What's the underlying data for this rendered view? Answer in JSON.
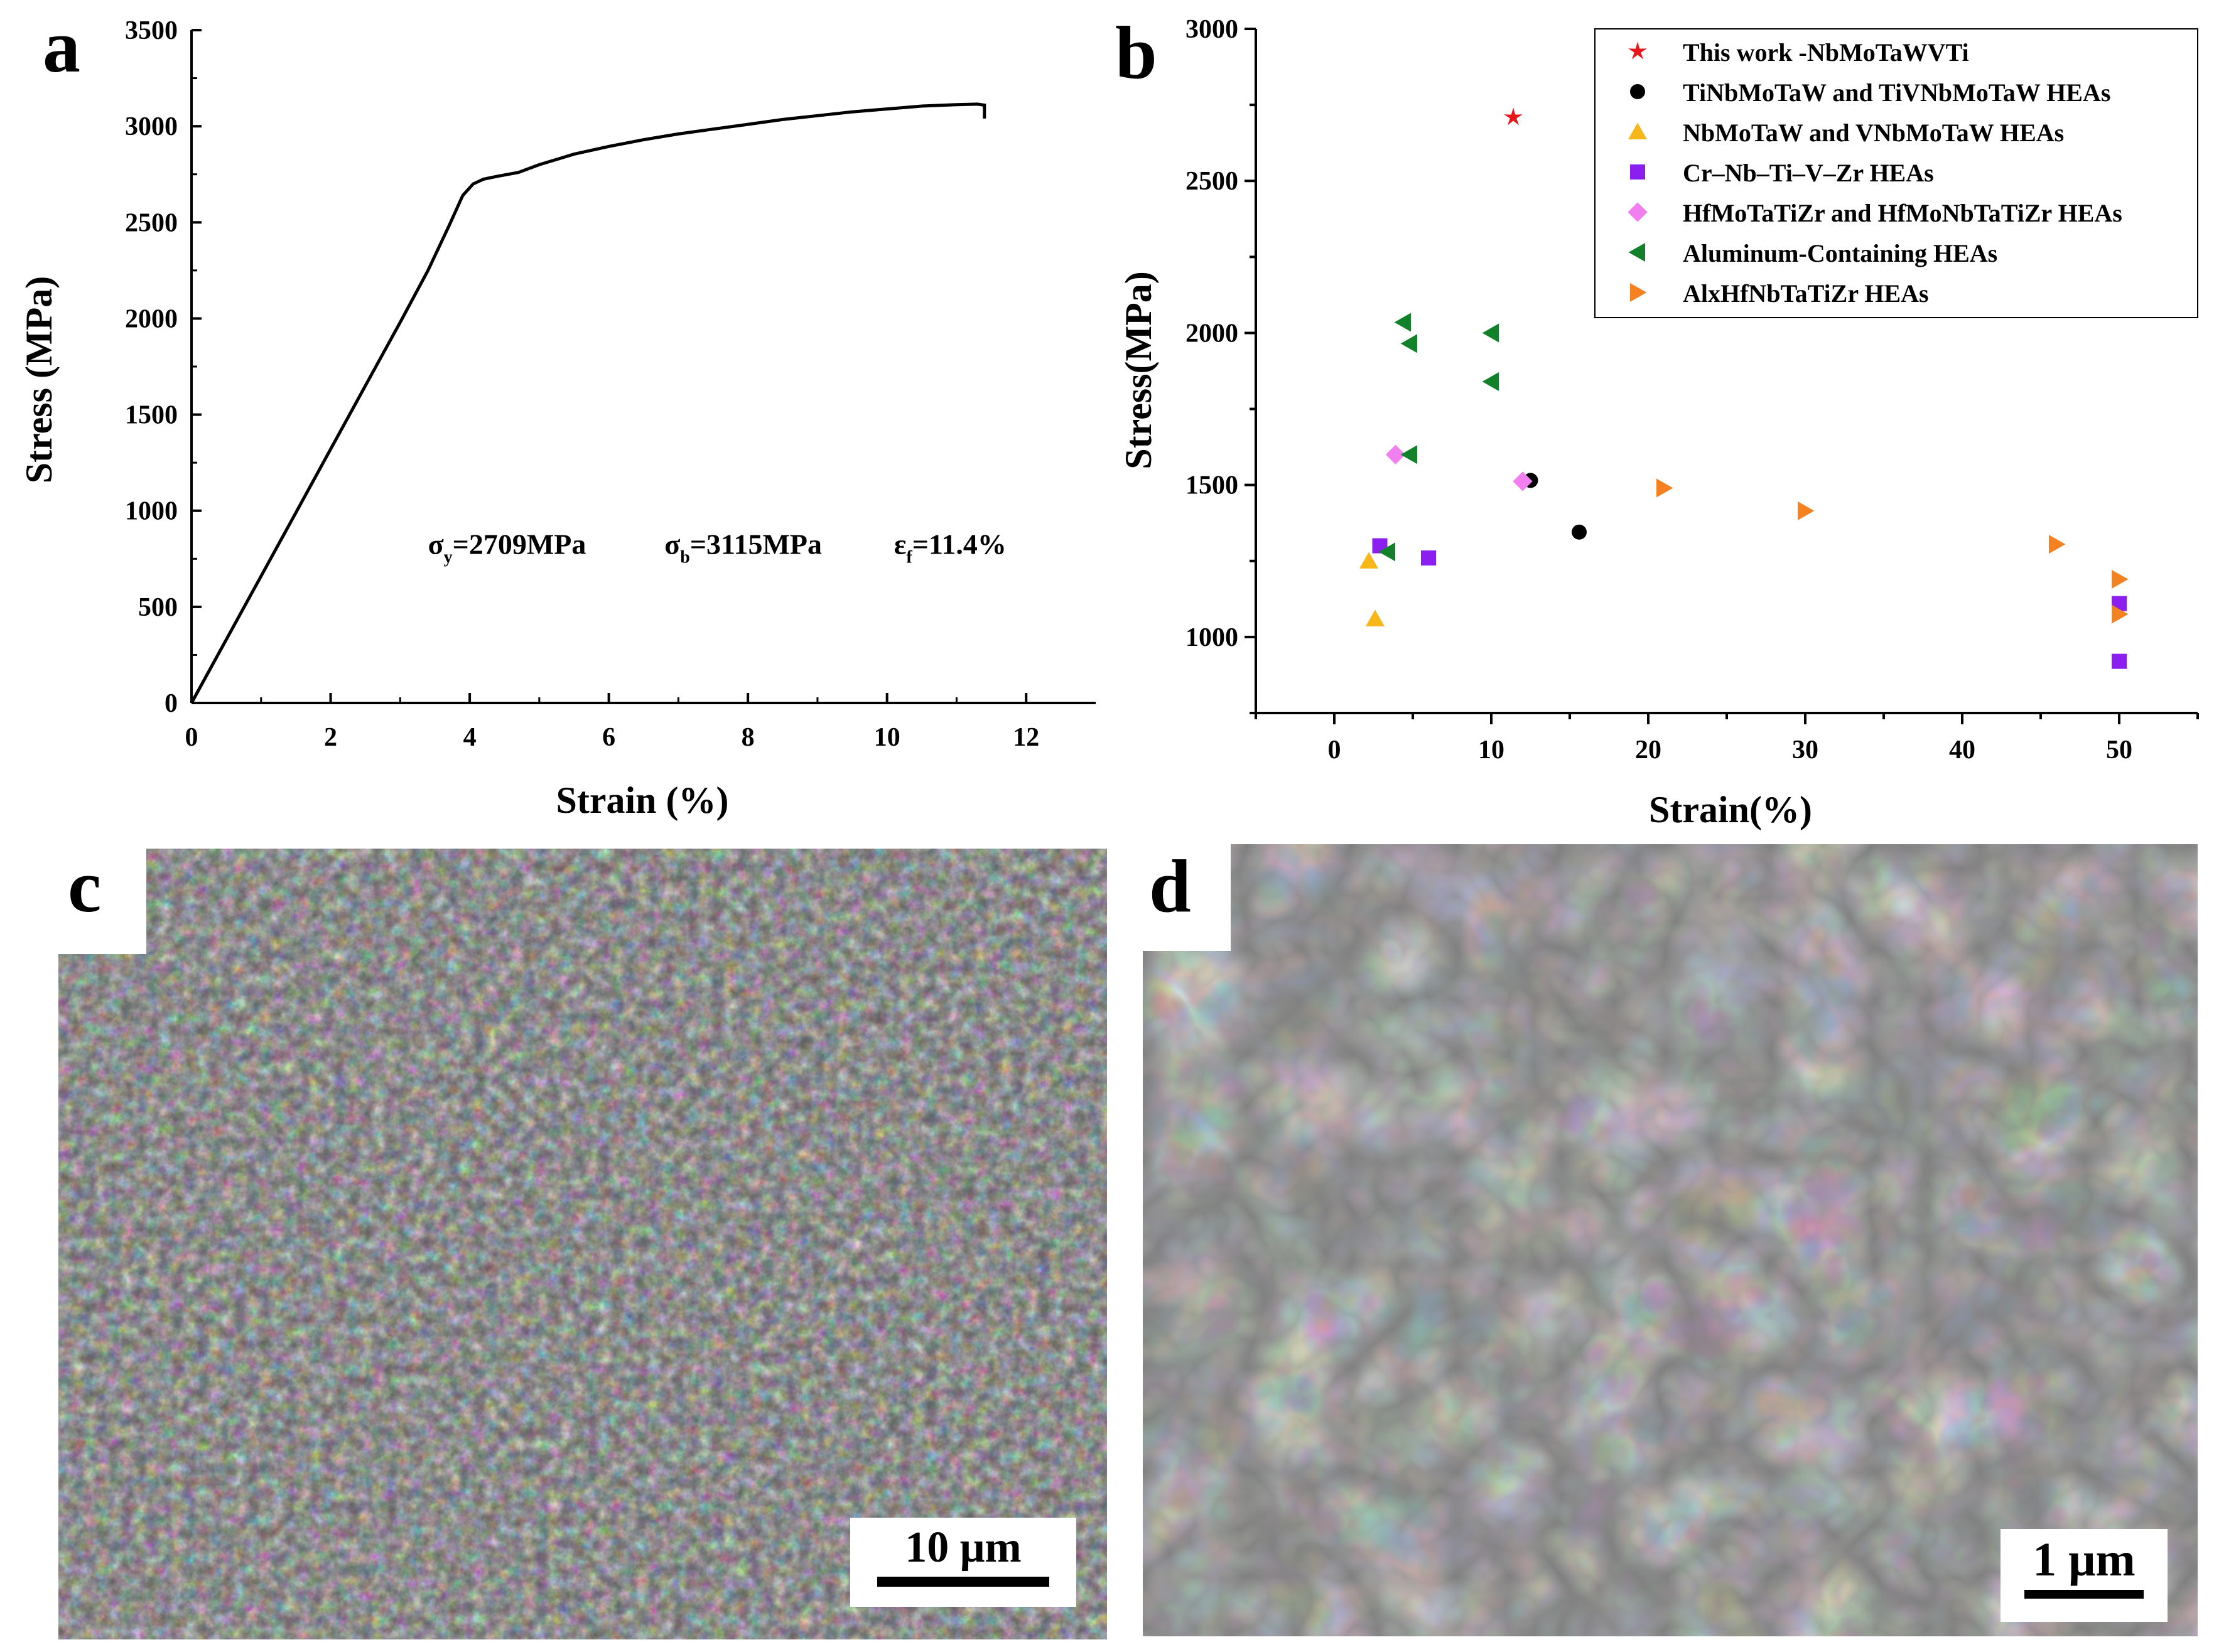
{
  "panels": {
    "a": "a",
    "b": "b",
    "c": "c",
    "d": "d"
  },
  "chart_data": [
    {
      "panel": "a",
      "type": "line",
      "title": "",
      "xlabel": "Strain (%)",
      "ylabel": "Stress (MPa)",
      "xlim": [
        0,
        13
      ],
      "ylim": [
        0,
        3500
      ],
      "xticks": [
        0,
        2,
        4,
        6,
        8,
        10,
        12
      ],
      "yticks": [
        0,
        500,
        1000,
        1500,
        2000,
        2500,
        3000,
        3500
      ],
      "series": [
        {
          "x": [
            0,
            0.5,
            1.0,
            1.5,
            2.0,
            2.5,
            3.0,
            3.4,
            3.7,
            3.9,
            4.05,
            4.2,
            4.4,
            4.7,
            5.0,
            5.5,
            6.0,
            6.5,
            7.0,
            7.5,
            8.0,
            8.5,
            9.0,
            9.5,
            10.0,
            10.5,
            11.0,
            11.3,
            11.4,
            11.4
          ],
          "y": [
            0,
            330,
            660,
            990,
            1320,
            1650,
            1980,
            2250,
            2480,
            2640,
            2700,
            2725,
            2740,
            2760,
            2800,
            2855,
            2895,
            2930,
            2960,
            2985,
            3010,
            3035,
            3055,
            3075,
            3090,
            3105,
            3112,
            3115,
            3110,
            3040
          ]
        }
      ],
      "annotations": [
        {
          "symbol": "σ",
          "sub": "y",
          "text": "=2709MPa",
          "x": 3.4,
          "y": 900
        },
        {
          "symbol": "σ",
          "sub": "b",
          "text": "=3115MPa",
          "x": 6.8,
          "y": 900
        },
        {
          "symbol": "ε",
          "sub": "f",
          "text": "=11.4%",
          "x": 10.1,
          "y": 900
        }
      ]
    },
    {
      "panel": "b",
      "type": "scatter",
      "title": "",
      "xlabel": "Strain(%)",
      "ylabel": "Stress(MPa)",
      "xlim": [
        -5,
        55
      ],
      "ylim": [
        750,
        3000
      ],
      "xticks": [
        0,
        10,
        20,
        30,
        40,
        50
      ],
      "yticks": [
        1000,
        1500,
        2000,
        2500,
        3000
      ],
      "legend_position": "top-right",
      "series": [
        {
          "name": "This work -NbMoTaWVTi",
          "marker": "star",
          "color": "#e8161b",
          "points": [
            [
              11.4,
              2709
            ]
          ]
        },
        {
          "name": "TiNbMoTaW and TiVNbMoTaW HEAs",
          "marker": "circle",
          "color": "#000000",
          "points": [
            [
              12.5,
              1515
            ],
            [
              15.6,
              1345
            ]
          ]
        },
        {
          "name": "NbMoTaW and VNbMoTaW HEAs",
          "marker": "triangle-up",
          "color": "#f7b718",
          "points": [
            [
              2.2,
              1250
            ],
            [
              2.6,
              1060
            ]
          ]
        },
        {
          "name": "Cr–Nb–Ti–V–Zr HEAs",
          "marker": "square",
          "color": "#8a1ff0",
          "points": [
            [
              2.9,
              1300
            ],
            [
              6.0,
              1260
            ],
            [
              50,
              1110
            ],
            [
              50,
              920
            ]
          ]
        },
        {
          "name": "HfMoTaTiZr and HfMoNbTaTiZr HEAs",
          "marker": "diamond",
          "color": "#f27ff0",
          "points": [
            [
              3.9,
              1600
            ],
            [
              12.0,
              1512
            ]
          ]
        },
        {
          "name": "Aluminum-Containing HEAs",
          "marker": "triangle-left",
          "color": "#11822a",
          "points": [
            [
              4.4,
              2035
            ],
            [
              4.8,
              1965
            ],
            [
              10.0,
              2000
            ],
            [
              10.0,
              1840
            ],
            [
              4.8,
              1600
            ],
            [
              3.4,
              1280
            ]
          ]
        },
        {
          "name": "AlxHfNbTaTiZr HEAs",
          "marker": "triangle-right",
          "color": "#f58220",
          "points": [
            [
              21.0,
              1490
            ],
            [
              30.0,
              1415
            ],
            [
              46.0,
              1305
            ],
            [
              50.0,
              1190
            ],
            [
              50.0,
              1075
            ]
          ]
        }
      ]
    }
  ],
  "sem_c": {
    "scale_label": "10 μm"
  },
  "sem_d": {
    "scale_label": "1 μm"
  }
}
